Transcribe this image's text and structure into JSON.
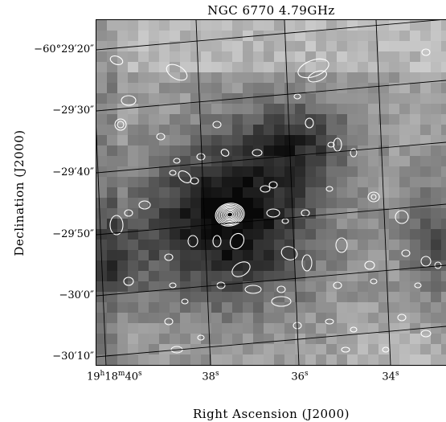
{
  "figure": {
    "title": "NGC 6770  4.79GHz",
    "xlabel": "Right Ascension (J2000)",
    "ylabel": "Declination (J2000)",
    "ra_ticks": [
      "19h18m40s",
      "38s",
      "36s",
      "34s"
    ],
    "dec_ticks": [
      "−60°29′20″",
      "−29′30″",
      "−29′40″",
      "−29′50″",
      "−30′0″",
      "−30′10″"
    ],
    "ra_ticks_display": [
      {
        "main": "19",
        "h": "h",
        "m1": "18",
        "m": "m",
        "s1": "40",
        "s": "s"
      },
      {
        "main": "38",
        "s": "s"
      },
      {
        "main": "36",
        "s": "s"
      },
      {
        "main": "34",
        "s": "s"
      }
    ],
    "image": {
      "colormap": "grayscale",
      "contour_color": "#ffffff",
      "grid_color": "#000000"
    }
  }
}
